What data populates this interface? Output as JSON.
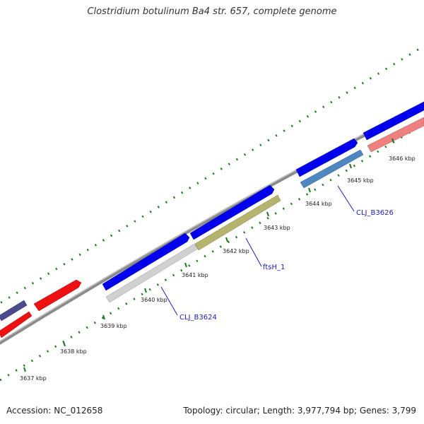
{
  "title": "Clostridium botulinum Ba4 str. 657, complete genome",
  "accession": "Accession: NC_012658",
  "summary": "Topology: circular; Length: 3,977,794 bp; Genes: 3,799",
  "ticks": [
    "3637 kbp",
    "3638 kbp",
    "3639 kbp",
    "3640 kbp",
    "3641 kbp",
    "3642 kbp",
    "3643 kbp",
    "3644 kbp",
    "3645 kbp",
    "3646 kbp"
  ],
  "gene_labels": [
    "CLJ_B3624",
    "ftsH_1",
    "CLJ_B3626"
  ],
  "colors": {
    "backbone": "#8a8a8a",
    "gc_dots": "#1f7a1f",
    "cds": "#0000ee",
    "rrna": "#ee1111",
    "trna": "#4a4a8c",
    "pseudo": "#c8c8c8",
    "ftsh": "#b4b46e",
    "cds_steel": "#4f86c0",
    "cds_pink": "#ee8080",
    "label_line": "#1c1cb4"
  }
}
